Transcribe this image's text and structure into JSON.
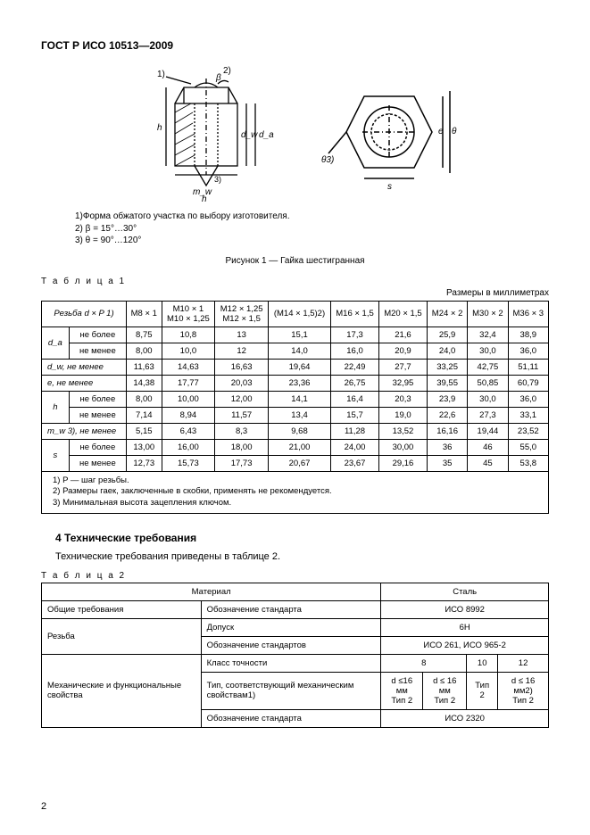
{
  "docTitle": "ГОСТ Р ИСО 10513—2009",
  "notes": {
    "n1": "1)Форма обжатого участка по выбору изготовителя.",
    "n2": "2)  β = 15°…30°",
    "n3": "3)  θ = 90°…120°"
  },
  "figureCaption": "Рисунок 1 — Гайка шестигранная",
  "table1": {
    "label": "Т а б л и ц а  1",
    "units": "Размеры в миллиметрах",
    "headerThread": "Резьба d × P 1)",
    "cols": [
      "M8 × 1",
      "M10 × 1\nM10 × 1,25",
      "M12 × 1,25\nM12 × 1,5",
      "(M14 × 1,5)2)",
      "M16 × 1,5",
      "M20 × 1,5",
      "M24 × 2",
      "M30 × 2",
      "M36 × 3"
    ],
    "rows": [
      {
        "label": "d_a",
        "sub": "не более",
        "vals": [
          "8,75",
          "10,8",
          "13",
          "15,1",
          "17,3",
          "21,6",
          "25,9",
          "32,4",
          "38,9"
        ]
      },
      {
        "label": "",
        "sub": "не менее",
        "vals": [
          "8,00",
          "10,0",
          "12",
          "14,0",
          "16,0",
          "20,9",
          "24,0",
          "30,0",
          "36,0"
        ]
      },
      {
        "label": "d_w, не менее",
        "sub": "",
        "vals": [
          "11,63",
          "14,63",
          "16,63",
          "19,64",
          "22,49",
          "27,7",
          "33,25",
          "42,75",
          "51,11"
        ]
      },
      {
        "label": "e, не менее",
        "sub": "",
        "vals": [
          "14,38",
          "17,77",
          "20,03",
          "23,36",
          "26,75",
          "32,95",
          "39,55",
          "50,85",
          "60,79"
        ]
      },
      {
        "label": "h",
        "sub": "не более",
        "vals": [
          "8,00",
          "10,00",
          "12,00",
          "14,1",
          "16,4",
          "20,3",
          "23,9",
          "30,0",
          "36,0"
        ]
      },
      {
        "label": "",
        "sub": "не менее",
        "vals": [
          "7,14",
          "8,94",
          "11,57",
          "13,4",
          "15,7",
          "19,0",
          "22,6",
          "27,3",
          "33,1"
        ]
      },
      {
        "label": "m_w 3), не менее",
        "sub": "",
        "vals": [
          "5,15",
          "6,43",
          "8,3",
          "9,68",
          "11,28",
          "13,52",
          "16,16",
          "19,44",
          "23,52"
        ]
      },
      {
        "label": "s",
        "sub": "не более",
        "vals": [
          "13,00",
          "16,00",
          "18,00",
          "21,00",
          "24,00",
          "30,00",
          "36",
          "46",
          "55,0"
        ]
      },
      {
        "label": "",
        "sub": "не менее",
        "vals": [
          "12,73",
          "15,73",
          "17,73",
          "20,67",
          "23,67",
          "29,16",
          "35",
          "45",
          "53,8"
        ]
      }
    ],
    "footnotes": [
      "1) P — шаг резьбы.",
      "2) Размеры гаек, заключенные в скобки, применять не рекомендуется.",
      "3) Минимальная высота зацепления ключом."
    ]
  },
  "section4": {
    "heading": "4  Технические требования",
    "text": "Технические требования приведены в таблице 2."
  },
  "table2": {
    "label": "Т а б л и ц а  2",
    "r": {
      "material": "Материал",
      "steel": "Сталь",
      "generalReq": "Общие требования",
      "stdDesig": "Обозначение стандарта",
      "iso8992": "ИСО 8992",
      "thread": "Резьба",
      "tolerance": "Допуск",
      "sixH": "6H",
      "stdsDesig": "Обозначение стандартов",
      "iso261": "ИСО 261, ИСО 965-2",
      "mech": "Механические и функциональные свойства",
      "precClass": "Класс точности",
      "c8": "8",
      "c10": "10",
      "c12": "12",
      "typeMech": "Тип, соответствующий механическим свойствам1)",
      "d16a": "d ≤16 мм\nТип 2",
      "d16b": "d  ≤ 16 мм\nТип 2",
      "type2": "Тип 2",
      "d16c": "d  ≤ 16 мм2)\nТип 2",
      "stdDesig2": "Обозначение стандарта",
      "iso2320": "ИСО 2320"
    }
  },
  "pageNumber": "2",
  "diagram": {
    "labels": {
      "one": "1)",
      "two": "2)",
      "three": "3)",
      "beta": "β",
      "mw": "m_w",
      "h": "h",
      "dw": "d_w",
      "da": "d_a",
      "theta1": "θ",
      "theta2": "θ",
      "s": "s",
      "e": "e"
    }
  }
}
